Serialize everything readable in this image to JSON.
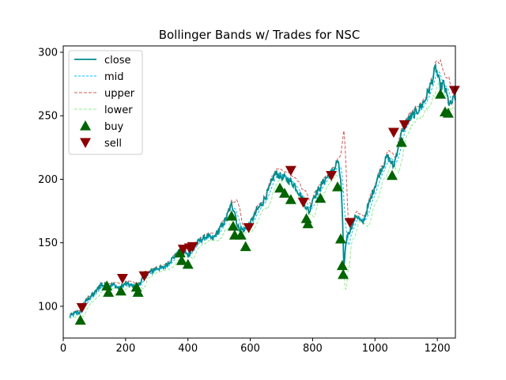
{
  "chart_data": {
    "type": "line",
    "title": "Bollinger Bands w/ Trades for NSC",
    "xlabel": "",
    "ylabel": "",
    "xlim": [
      0,
      1258
    ],
    "ylim": [
      75,
      305
    ],
    "xticks": [
      0,
      200,
      400,
      600,
      800,
      1000,
      1200
    ],
    "yticks": [
      100,
      150,
      200,
      250,
      300
    ],
    "grid": false,
    "legend_position": "top-left",
    "colors": {
      "close": "#008b8b",
      "mid": "#00bfff",
      "upper": "#cd5c5c",
      "lower": "#90ee90",
      "buy": "#006400",
      "sell": "#8b0000"
    },
    "legend": [
      {
        "key": "close",
        "label": "close",
        "kind": "line"
      },
      {
        "key": "mid",
        "label": "mid",
        "kind": "line"
      },
      {
        "key": "upper",
        "label": "upper",
        "kind": "line"
      },
      {
        "key": "lower",
        "label": "lower",
        "kind": "line"
      },
      {
        "key": "buy",
        "label": "buy",
        "kind": "marker"
      },
      {
        "key": "sell",
        "label": "sell",
        "kind": "marker"
      }
    ],
    "close_anchors": [
      [
        20,
        92
      ],
      [
        40,
        95
      ],
      [
        55,
        95
      ],
      [
        60,
        100
      ],
      [
        80,
        106
      ],
      [
        100,
        110
      ],
      [
        120,
        117
      ],
      [
        140,
        116
      ],
      [
        160,
        117
      ],
      [
        180,
        114
      ],
      [
        200,
        118
      ],
      [
        220,
        116
      ],
      [
        240,
        116
      ],
      [
        260,
        124
      ],
      [
        280,
        127
      ],
      [
        300,
        130
      ],
      [
        320,
        130
      ],
      [
        340,
        135
      ],
      [
        360,
        140
      ],
      [
        380,
        145
      ],
      [
        400,
        140
      ],
      [
        420,
        148
      ],
      [
        440,
        152
      ],
      [
        460,
        155
      ],
      [
        480,
        153
      ],
      [
        500,
        160
      ],
      [
        520,
        168
      ],
      [
        540,
        180
      ],
      [
        550,
        175
      ],
      [
        560,
        162
      ],
      [
        580,
        160
      ],
      [
        600,
        165
      ],
      [
        620,
        175
      ],
      [
        640,
        182
      ],
      [
        660,
        192
      ],
      [
        680,
        205
      ],
      [
        700,
        202
      ],
      [
        720,
        200
      ],
      [
        740,
        196
      ],
      [
        760,
        188
      ],
      [
        780,
        178
      ],
      [
        790,
        174
      ],
      [
        800,
        185
      ],
      [
        820,
        192
      ],
      [
        840,
        200
      ],
      [
        860,
        205
      ],
      [
        870,
        208
      ],
      [
        880,
        215
      ],
      [
        890,
        200
      ],
      [
        895,
        175
      ],
      [
        900,
        130
      ],
      [
        905,
        145
      ],
      [
        910,
        155
      ],
      [
        920,
        160
      ],
      [
        940,
        172
      ],
      [
        960,
        165
      ],
      [
        980,
        180
      ],
      [
        1000,
        195
      ],
      [
        1020,
        208
      ],
      [
        1040,
        218
      ],
      [
        1060,
        210
      ],
      [
        1080,
        232
      ],
      [
        1100,
        245
      ],
      [
        1120,
        250
      ],
      [
        1140,
        255
      ],
      [
        1160,
        262
      ],
      [
        1180,
        275
      ],
      [
        1195,
        288
      ],
      [
        1210,
        272
      ],
      [
        1220,
        275
      ],
      [
        1240,
        258
      ],
      [
        1258,
        265
      ]
    ],
    "buy": [
      [
        55,
        89
      ],
      [
        140,
        116
      ],
      [
        145,
        111
      ],
      [
        185,
        112
      ],
      [
        235,
        115
      ],
      [
        240,
        111
      ],
      [
        375,
        142
      ],
      [
        380,
        136
      ],
      [
        400,
        133
      ],
      [
        540,
        171
      ],
      [
        545,
        163
      ],
      [
        550,
        156
      ],
      [
        570,
        156
      ],
      [
        585,
        147
      ],
      [
        695,
        193
      ],
      [
        710,
        189
      ],
      [
        730,
        184
      ],
      [
        780,
        169
      ],
      [
        785,
        165
      ],
      [
        825,
        185
      ],
      [
        880,
        194
      ],
      [
        890,
        153
      ],
      [
        895,
        132
      ],
      [
        898,
        125
      ],
      [
        1055,
        203
      ],
      [
        1085,
        229
      ],
      [
        1210,
        267
      ],
      [
        1225,
        253
      ],
      [
        1235,
        252
      ]
    ],
    "sell": [
      [
        60,
        99
      ],
      [
        190,
        122
      ],
      [
        260,
        124
      ],
      [
        385,
        145
      ],
      [
        405,
        146
      ],
      [
        415,
        147
      ],
      [
        595,
        162
      ],
      [
        730,
        207
      ],
      [
        770,
        182
      ],
      [
        860,
        203
      ],
      [
        920,
        166
      ],
      [
        1060,
        237
      ],
      [
        1095,
        243
      ],
      [
        1255,
        270
      ]
    ]
  }
}
